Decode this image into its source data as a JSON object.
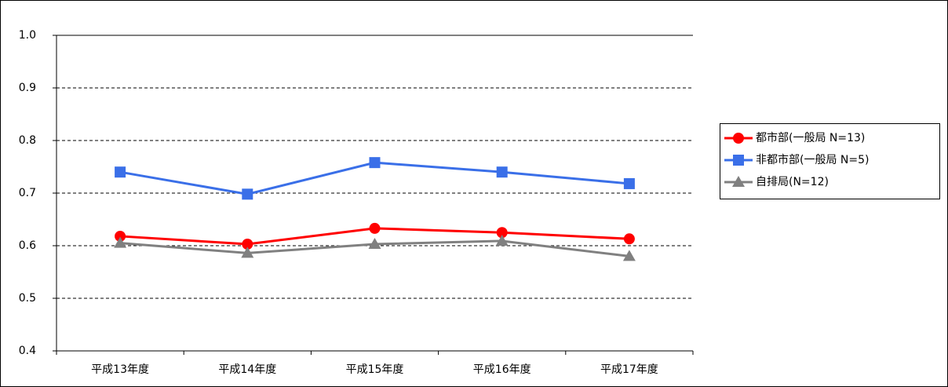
{
  "chart_data": {
    "type": "line",
    "categories": [
      "平成13年度",
      "平成14年度",
      "平成15年度",
      "平成16年度",
      "平成17年度"
    ],
    "series": [
      {
        "name": "都市部(一般局 N=13)",
        "color": "#ff0000",
        "marker": "circle",
        "values": [
          0.618,
          0.603,
          0.633,
          0.625,
          0.613
        ]
      },
      {
        "name": "非都市部(一般局 N=5)",
        "color": "#3a6fe8",
        "marker": "square",
        "values": [
          0.74,
          0.698,
          0.758,
          0.74,
          0.718
        ]
      },
      {
        "name": "自排局(N=12)",
        "color": "#808080",
        "marker": "triangle",
        "values": [
          0.605,
          0.586,
          0.603,
          0.609,
          0.58
        ]
      }
    ],
    "ylim": [
      0.4,
      1.0
    ],
    "yticks": [
      0.4,
      0.5,
      0.6,
      0.7,
      0.8,
      0.9,
      {
        "value": 1.0,
        "label": "1.0"
      }
    ],
    "grid": true,
    "legend": "right"
  }
}
